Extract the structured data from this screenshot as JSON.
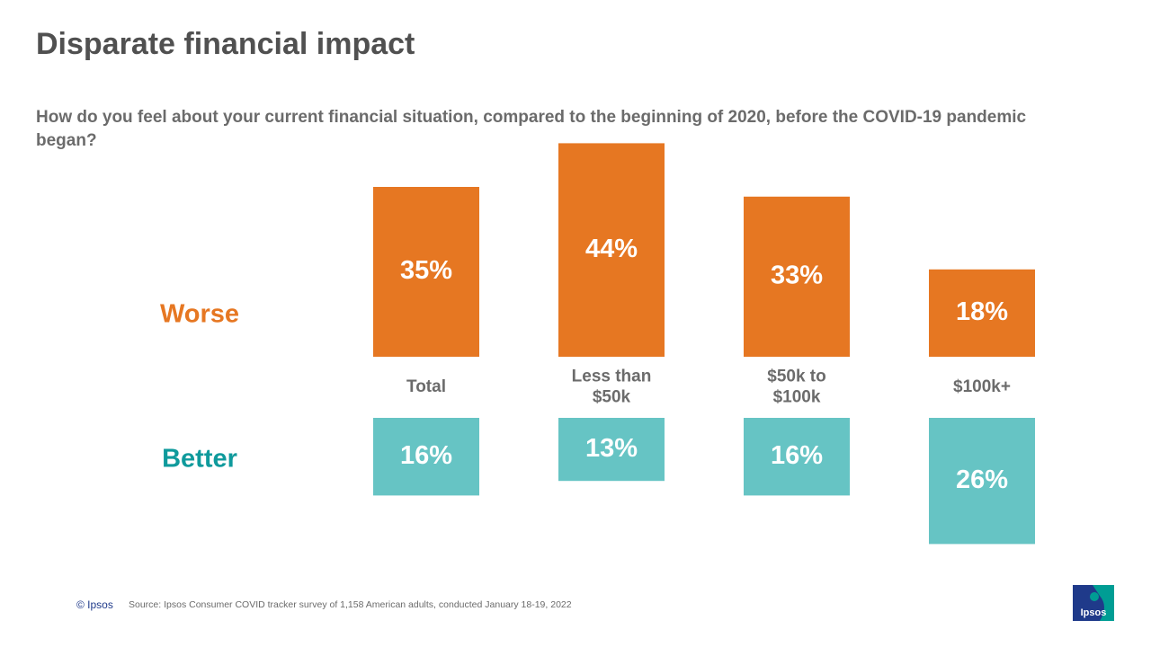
{
  "title": "Disparate financial impact",
  "subtitle": "How do you feel about your current financial situation, compared to the beginning of 2020, before the COVID-19 pandemic began?",
  "footer": {
    "copyright": "© Ipsos",
    "source": "Source: Ipsos Consumer COVID tracker survey of 1,158 American adults, conducted January 18-19, 2022"
  },
  "logo": {
    "text": "Ipsos",
    "colors": [
      "#1f3a8a",
      "#009d94"
    ]
  },
  "chart_data": {
    "type": "bar",
    "categories": [
      [
        "Total"
      ],
      [
        "Less than",
        "$50k"
      ],
      [
        "$50k to",
        "$100k"
      ],
      [
        "$100k+"
      ]
    ],
    "series": [
      {
        "name": "Worse",
        "values": [
          35,
          44,
          33,
          18
        ],
        "color": "#e67722",
        "direction": "up",
        "labels": [
          "35%",
          "44%",
          "33%",
          "18%"
        ]
      },
      {
        "name": "Better",
        "values": [
          16,
          13,
          16,
          26
        ],
        "color": "#66c4c4",
        "direction": "down",
        "labels": [
          "16%",
          "13%",
          "16%",
          "26%"
        ]
      }
    ],
    "series_label_colors": {
      "Worse": "#e67722",
      "Better": "#0f9a9c"
    },
    "unit": "%",
    "legend": "left"
  }
}
